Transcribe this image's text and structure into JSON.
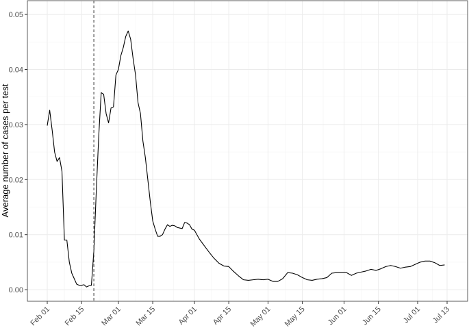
{
  "chart_data": {
    "type": "line",
    "y_label": "Average number of cases per test",
    "x": [
      "Feb 01",
      "Feb 02",
      "Feb 03",
      "Feb 04",
      "Feb 05",
      "Feb 06",
      "Feb 07",
      "Feb 08",
      "Feb 09",
      "Feb 10",
      "Feb 11",
      "Feb 12",
      "Feb 13",
      "Feb 14",
      "Feb 15",
      "Feb 16",
      "Feb 17",
      "Feb 18",
      "Feb 19",
      "Feb 20",
      "Feb 21",
      "Feb 22",
      "Feb 23",
      "Feb 24",
      "Feb 25",
      "Feb 26",
      "Feb 27",
      "Feb 28",
      "Feb 29",
      "Mar 01",
      "Mar 02",
      "Mar 03",
      "Mar 04",
      "Mar 05",
      "Mar 06",
      "Mar 07",
      "Mar 08",
      "Mar 09",
      "Mar 10",
      "Mar 11",
      "Mar 12",
      "Mar 13",
      "Mar 14",
      "Mar 15",
      "Mar 16",
      "Mar 17",
      "Mar 18",
      "Mar 19",
      "Mar 20",
      "Mar 21",
      "Mar 22",
      "Mar 23",
      "Mar 24",
      "Mar 25",
      "Mar 26",
      "Mar 27",
      "Mar 28",
      "Mar 29",
      "Mar 30",
      "Mar 31",
      "Apr 01",
      "Apr 03",
      "Apr 05",
      "Apr 07",
      "Apr 09",
      "Apr 11",
      "Apr 13",
      "Apr 15",
      "Apr 17",
      "Apr 19",
      "Apr 21",
      "Apr 23",
      "Apr 25",
      "Apr 27",
      "Apr 29",
      "May 01",
      "May 03",
      "May 05",
      "May 07",
      "May 09",
      "May 11",
      "May 13",
      "May 15",
      "May 17",
      "May 19",
      "May 21",
      "May 23",
      "May 25",
      "May 27",
      "May 29",
      "May 31",
      "Jun 02",
      "Jun 04",
      "Jun 06",
      "Jun 08",
      "Jun 10",
      "Jun 12",
      "Jun 14",
      "Jun 16",
      "Jun 18",
      "Jun 20",
      "Jun 22",
      "Jun 24",
      "Jun 26",
      "Jun 28",
      "Jun 30",
      "Jul 02",
      "Jul 04",
      "Jul 06",
      "Jul 08",
      "Jul 10",
      "Jul 12"
    ],
    "values": [
      0.0298,
      0.0326,
      0.029,
      0.025,
      0.0233,
      0.024,
      0.0215,
      0.009,
      0.009,
      0.005,
      0.003,
      0.002,
      0.001,
      0.0008,
      0.0008,
      0.0009,
      0.0005,
      0.0007,
      0.0008,
      0.007,
      0.018,
      0.028,
      0.0358,
      0.0355,
      0.032,
      0.0303,
      0.033,
      0.0332,
      0.039,
      0.04,
      0.0425,
      0.044,
      0.046,
      0.047,
      0.0455,
      0.042,
      0.039,
      0.034,
      0.032,
      0.027,
      0.024,
      0.02,
      0.016,
      0.0125,
      0.011,
      0.0097,
      0.0097,
      0.01,
      0.011,
      0.0118,
      0.0115,
      0.0117,
      0.0116,
      0.0113,
      0.0112,
      0.0111,
      0.0122,
      0.0121,
      0.0118,
      0.011,
      0.0108,
      0.0092,
      0.008,
      0.0068,
      0.0057,
      0.0048,
      0.0043,
      0.0042,
      0.0033,
      0.0025,
      0.0018,
      0.0017,
      0.0018,
      0.0019,
      0.0018,
      0.0019,
      0.0015,
      0.0015,
      0.002,
      0.0031,
      0.003,
      0.0027,
      0.0022,
      0.0018,
      0.0017,
      0.0019,
      0.002,
      0.0022,
      0.003,
      0.0031,
      0.0031,
      0.0031,
      0.0026,
      0.003,
      0.0032,
      0.0034,
      0.0037,
      0.0035,
      0.0038,
      0.0042,
      0.0044,
      0.0042,
      0.0039,
      0.0041,
      0.0042,
      0.0046,
      0.005,
      0.0052,
      0.0052,
      0.0049,
      0.0044,
      0.0045
    ],
    "color": "#000000",
    "vline": "Feb 20",
    "xticks": [
      "Feb 01",
      "Feb 15",
      "Mar 01",
      "Mar 15",
      "Apr 01",
      "Apr 15",
      "May 01",
      "May 15",
      "Jun 01",
      "Jun 15",
      "Jul 01",
      "Jul 13"
    ],
    "ylim": [
      -0.0021,
      0.0525
    ],
    "yticks": [
      {
        "value": 0,
        "label": "0.00"
      },
      {
        "value": 0.01,
        "label": "0.01"
      },
      {
        "value": 0.02,
        "label": "0.02"
      },
      {
        "value": 0.03,
        "label": "0.03"
      },
      {
        "value": 0.04,
        "label": "0.04"
      },
      {
        "value": 0.05,
        "label": "0.05"
      }
    ],
    "grid": true
  }
}
